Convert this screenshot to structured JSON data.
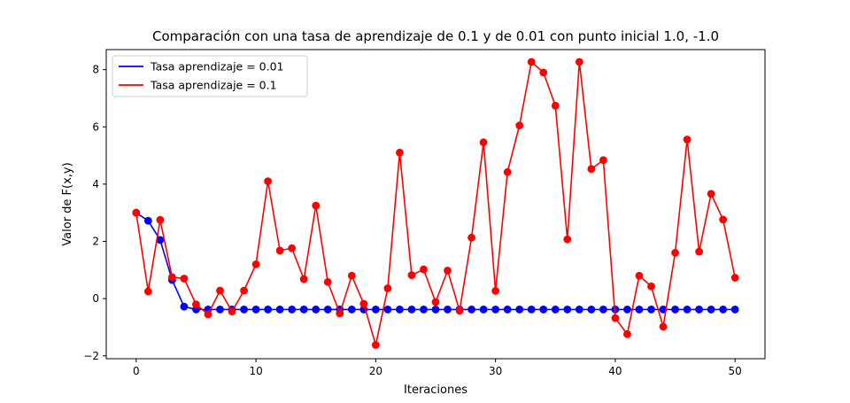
{
  "chart_data": {
    "type": "line",
    "title": "Comparación con una tasa de aprendizaje de 0.1 y de 0.01 con punto inicial 1.0, -1.0",
    "xlabel": "Iteraciones",
    "ylabel": "Valor de F(x,y)",
    "xlim": [
      -2.5,
      52.5
    ],
    "ylim": [
      -2.1,
      8.7
    ],
    "xticks": [
      0,
      10,
      20,
      30,
      40,
      50
    ],
    "yticks": [
      -2,
      0,
      2,
      4,
      6,
      8
    ],
    "grid": false,
    "legend_position": "top-left",
    "series": [
      {
        "name": "Tasa aprendizaje = 0.01",
        "color": "#0000ff",
        "x": [
          0,
          1,
          2,
          3,
          4,
          5,
          6,
          7,
          8,
          9,
          10,
          11,
          12,
          13,
          14,
          15,
          16,
          17,
          18,
          19,
          20,
          21,
          22,
          23,
          24,
          25,
          26,
          27,
          28,
          29,
          30,
          31,
          32,
          33,
          34,
          35,
          36,
          37,
          38,
          39,
          40,
          41,
          42,
          43,
          44,
          45,
          46,
          47,
          48,
          49,
          50
        ],
        "y": [
          3.0,
          2.72,
          2.05,
          0.65,
          -0.28,
          -0.38,
          -0.38,
          -0.38,
          -0.38,
          -0.38,
          -0.38,
          -0.38,
          -0.38,
          -0.38,
          -0.38,
          -0.38,
          -0.38,
          -0.38,
          -0.38,
          -0.38,
          -0.38,
          -0.38,
          -0.38,
          -0.38,
          -0.38,
          -0.38,
          -0.38,
          -0.38,
          -0.38,
          -0.38,
          -0.38,
          -0.38,
          -0.38,
          -0.38,
          -0.38,
          -0.38,
          -0.38,
          -0.38,
          -0.38,
          -0.38,
          -0.38,
          -0.38,
          -0.38,
          -0.38,
          -0.38,
          -0.38,
          -0.38,
          -0.38,
          -0.38,
          -0.38,
          -0.38
        ]
      },
      {
        "name": "Tasa aprendizaje = 0.1",
        "color": "#ff0000",
        "x": [
          0,
          1,
          2,
          3,
          4,
          5,
          6,
          7,
          8,
          9,
          10,
          11,
          12,
          13,
          14,
          15,
          16,
          17,
          18,
          19,
          20,
          21,
          22,
          23,
          24,
          25,
          26,
          27,
          28,
          29,
          30,
          31,
          32,
          33,
          34,
          35,
          36,
          37,
          38,
          39,
          40,
          41,
          42,
          43,
          44,
          45,
          46,
          47,
          48,
          49,
          50
        ],
        "y": [
          3.0,
          0.25,
          2.75,
          0.75,
          0.7,
          -0.2,
          -0.55,
          0.28,
          -0.45,
          0.28,
          1.2,
          4.1,
          1.68,
          1.76,
          0.68,
          3.25,
          0.58,
          -0.52,
          0.8,
          -0.18,
          -1.62,
          0.36,
          5.1,
          0.82,
          1.02,
          -0.12,
          0.98,
          -0.42,
          2.13,
          5.46,
          0.27,
          4.42,
          6.05,
          8.27,
          7.9,
          6.74,
          2.07,
          8.27,
          4.53,
          4.84,
          -0.68,
          -1.24,
          0.8,
          0.43,
          -0.98,
          1.6,
          5.56,
          1.64,
          3.66,
          2.76,
          0.73
        ]
      }
    ]
  }
}
